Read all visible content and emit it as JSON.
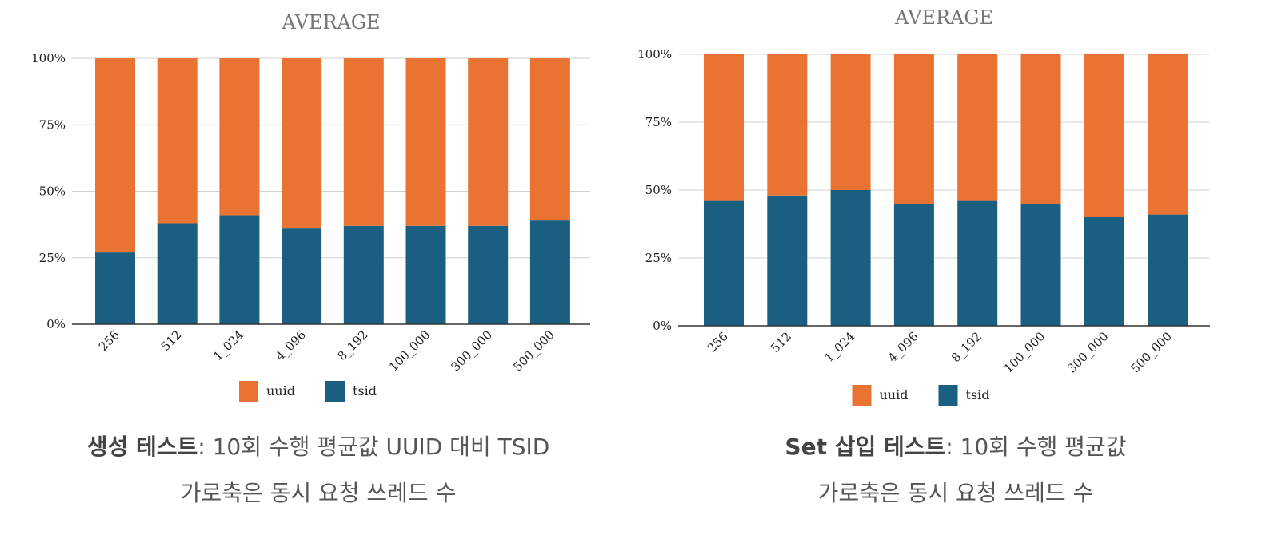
{
  "chart_data": [
    {
      "type": "bar",
      "stacked": true,
      "normalized": true,
      "title": "AVERAGE",
      "categories": [
        "256",
        "512",
        "1_024",
        "4_096",
        "8_192",
        "100_000",
        "300_000",
        "500_000"
      ],
      "series": [
        {
          "name": "tsid",
          "color": "#1a5f82",
          "values": [
            27,
            38,
            41,
            36,
            37,
            37,
            37,
            39
          ]
        },
        {
          "name": "uuid",
          "color": "#e87333",
          "values": [
            73,
            62,
            59,
            64,
            63,
            63,
            63,
            61
          ]
        }
      ],
      "y_ticks": [
        "0%",
        "25%",
        "50%",
        "75%",
        "100%"
      ],
      "ylim": [
        0,
        100
      ],
      "grid": true,
      "legend_position": "bottom"
    },
    {
      "type": "bar",
      "stacked": true,
      "normalized": true,
      "title": "AVERAGE",
      "categories": [
        "256",
        "512",
        "1_024",
        "4_096",
        "8_192",
        "100_000",
        "300_000",
        "500_000"
      ],
      "series": [
        {
          "name": "tsid",
          "color": "#1a5f82",
          "values": [
            46,
            48,
            50,
            45,
            46,
            45,
            40,
            41
          ]
        },
        {
          "name": "uuid",
          "color": "#e87333",
          "values": [
            54,
            52,
            50,
            55,
            54,
            55,
            60,
            59
          ]
        }
      ],
      "y_ticks": [
        "0%",
        "25%",
        "50%",
        "75%",
        "100%"
      ],
      "ylim": [
        0,
        100
      ],
      "grid": true,
      "legend_position": "bottom"
    }
  ],
  "captions": [
    {
      "bold": "생성 테스트",
      "rest": ": 10회 수행 평균값 UUID 대비 TSID",
      "line2": "가로축은 동시 요청 쓰레드 수"
    },
    {
      "bold": "Set 삽입 테스트",
      "rest": ": 10회 수행 평균값",
      "line2": "가로축은 동시 요청 쓰레드 수"
    }
  ]
}
